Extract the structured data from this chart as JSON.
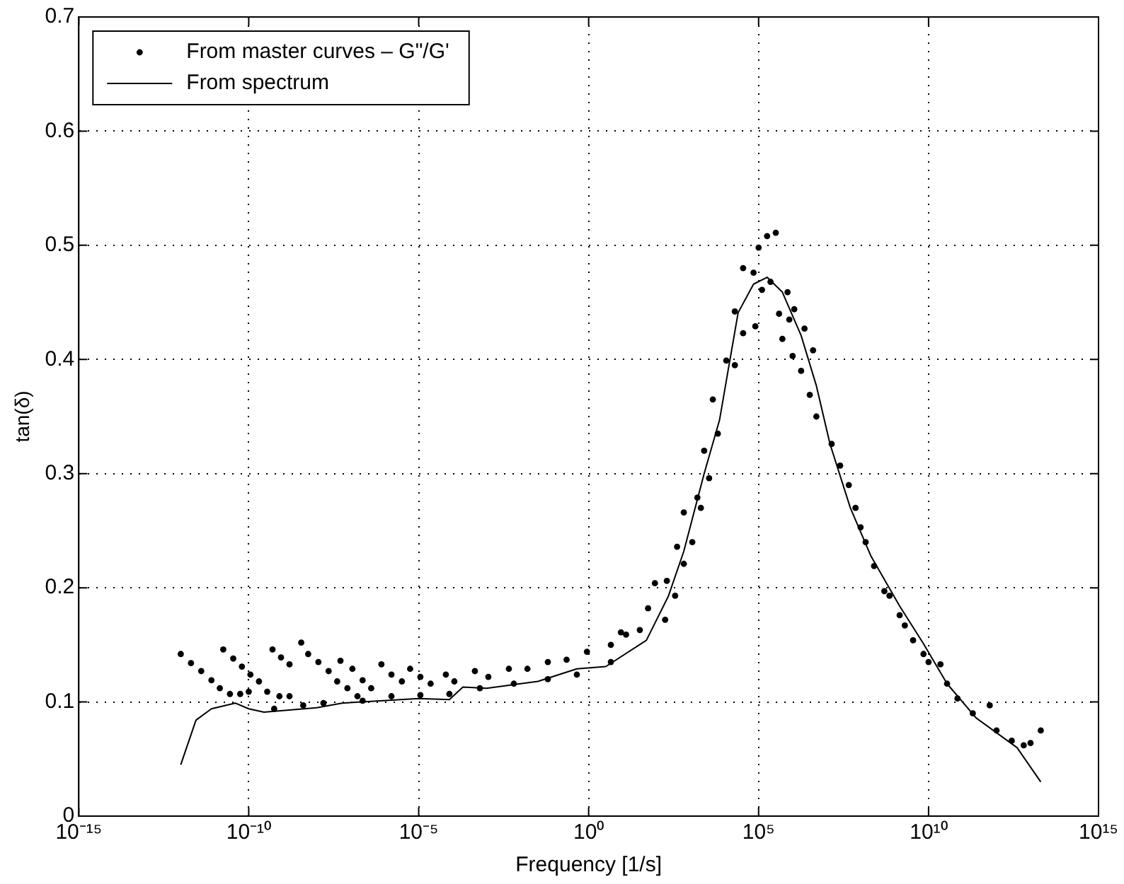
{
  "chart_data": {
    "type": "line",
    "xlabel": "Frequency [1/s]",
    "ylabel": "tan(δ)",
    "log": "x",
    "grid": true,
    "legend": "top left",
    "xlim": [
      1e-15,
      1000000000000000.0
    ],
    "xticks": [
      {
        "value": 1e-15,
        "label": "10⁻¹⁵"
      },
      {
        "value": 1e-10,
        "label": "10⁻¹⁰"
      },
      {
        "value": 1e-05,
        "label": "10⁻⁵"
      },
      {
        "value": 1,
        "label": "10⁰"
      },
      {
        "value": 100000.0,
        "label": "10⁵"
      },
      {
        "value": 10000000000.0,
        "label": "10¹⁰"
      },
      {
        "value": 1000000000000000.0,
        "label": "10¹⁵"
      }
    ],
    "ylim": [
      0,
      0.7
    ],
    "yticks": [
      0,
      0.1,
      0.2,
      0.3,
      0.4,
      0.5,
      0.6,
      0.7
    ],
    "series": [
      {
        "name": "From master curves – G\"/G'",
        "type": "scatter",
        "marker": "circle",
        "color": "#000000",
        "x": [
          1e-12,
          2e-12,
          4e-12,
          8e-12,
          1.41e-11,
          2.8e-11,
          5.6e-11,
          1e-10,
          1.78e-11,
          3.5e-11,
          6.3e-11,
          1.12e-10,
          2e-10,
          3.5e-10,
          8e-10,
          1.58e-09,
          5e-10,
          8.9e-10,
          1.58e-09,
          3.5e-09,
          5.6e-09,
          1.12e-08,
          2.24e-08,
          4e-08,
          8e-08,
          1.58e-07,
          5e-08,
          1.12e-07,
          2.24e-07,
          4e-07,
          8e-07,
          1.58e-06,
          3.2e-06,
          5.6e-06,
          1.12e-05,
          2.24e-05,
          6.3e-05,
          0.000112,
          0.00045,
          0.00112,
          0.0045,
          0.0158,
          0.063,
          0.224,
          0.89,
          8.9,
          5.6e-10,
          4e-09,
          1.58e-08,
          2.24e-07,
          1.58e-06,
          1.12e-05,
          8e-05,
          0.00063,
          0.0063,
          0.063,
          0.45,
          4.5,
          4.5,
          12.6,
          32,
          56,
          89,
          178,
          200,
          350,
          400,
          630,
          630,
          1120,
          1580,
          2000,
          2500,
          3500,
          4500,
          6300,
          11200,
          20000,
          20000,
          35000,
          35000,
          71000,
          80000,
          100000,
          178000,
          320000,
          126000,
          224000,
          400000,
          710000,
          800000,
          1120000,
          500000,
          1000000,
          1780000,
          2240000,
          3200000,
          4000000,
          5000000,
          14100000.0,
          25000000.0,
          45000000.0,
          71000000.0,
          100000000.0,
          141000000.0,
          250000000.0,
          500000000.0,
          710000000.0,
          1410000000.0,
          2000000000.0,
          3500000000.0,
          7100000000.0,
          10000000000.0,
          22400000000.0,
          35000000000.0,
          71000000000.0,
          200000000000.0,
          630000000000.0,
          1000000000000.0,
          2800000000000.0,
          6300000000000.0,
          10000000000000.0,
          20000000000000.0
        ],
        "values": [
          0.142,
          0.134,
          0.127,
          0.119,
          0.112,
          0.107,
          0.107,
          0.109,
          0.146,
          0.138,
          0.131,
          0.124,
          0.118,
          0.109,
          0.105,
          0.105,
          0.146,
          0.139,
          0.133,
          0.152,
          0.142,
          0.135,
          0.127,
          0.118,
          0.112,
          0.105,
          0.136,
          0.129,
          0.119,
          0.112,
          0.133,
          0.124,
          0.118,
          0.129,
          0.122,
          0.116,
          0.124,
          0.118,
          0.127,
          0.122,
          0.129,
          0.129,
          0.135,
          0.137,
          0.144,
          0.161,
          0.094,
          0.097,
          0.099,
          0.101,
          0.105,
          0.106,
          0.107,
          0.112,
          0.116,
          0.12,
          0.124,
          0.135,
          0.15,
          0.159,
          0.163,
          0.182,
          0.204,
          0.172,
          0.206,
          0.193,
          0.236,
          0.221,
          0.266,
          0.24,
          0.279,
          0.27,
          0.32,
          0.296,
          0.365,
          0.335,
          0.399,
          0.395,
          0.442,
          0.423,
          0.48,
          0.476,
          0.429,
          0.498,
          0.508,
          0.511,
          0.461,
          0.468,
          0.44,
          0.459,
          0.435,
          0.444,
          0.418,
          0.403,
          0.39,
          0.427,
          0.369,
          0.408,
          0.35,
          0.326,
          0.307,
          0.29,
          0.27,
          0.253,
          0.24,
          0.219,
          0.197,
          0.193,
          0.176,
          0.167,
          0.154,
          0.142,
          0.135,
          0.133,
          0.116,
          0.103,
          0.09,
          0.097,
          0.075,
          0.066,
          0.062,
          0.064,
          0.075
        ]
      },
      {
        "name": "From spectrum",
        "type": "line",
        "marker": "none",
        "line_style": "solid",
        "color": "#000000",
        "x": [
          1e-12,
          2.8e-12,
          8e-12,
          4e-11,
          1e-10,
          2.8e-10,
          1e-08,
          5.6e-08,
          1e-05,
          8e-05,
          0.0002,
          0.001,
          0.032,
          0.45,
          3.2,
          50,
          224,
          630,
          2500,
          7100,
          12600,
          25000,
          71000,
          178000,
          500000,
          1780000,
          5000000,
          12600000.0,
          50000000.0,
          200000000.0,
          1410000000.0,
          7100000000.0,
          35000000000.0,
          250000000000.0,
          4000000000000.0,
          20000000000000.0
        ],
        "values": [
          0.045,
          0.084,
          0.094,
          0.099,
          0.094,
          0.091,
          0.095,
          0.099,
          0.103,
          0.102,
          0.113,
          0.112,
          0.118,
          0.129,
          0.131,
          0.154,
          0.193,
          0.232,
          0.3,
          0.347,
          0.39,
          0.441,
          0.466,
          0.472,
          0.459,
          0.421,
          0.377,
          0.326,
          0.27,
          0.228,
          0.184,
          0.151,
          0.116,
          0.086,
          0.06,
          0.03
        ]
      }
    ]
  }
}
